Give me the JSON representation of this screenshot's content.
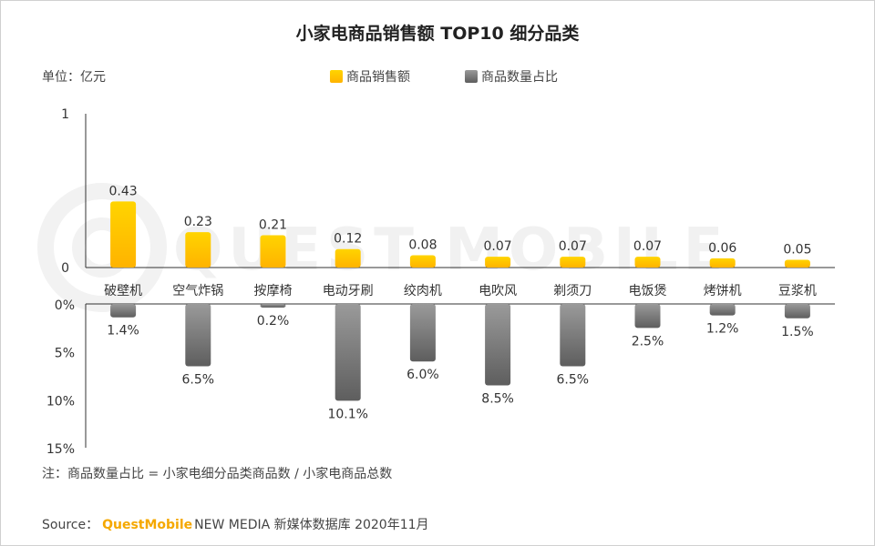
{
  "title": "小家电商品销售额 TOP10 细分品类",
  "unit_label": "单位：亿元",
  "legend": {
    "sales": "商品销售额",
    "share": "商品数量占比"
  },
  "colors": {
    "sales_top": "#ffd400",
    "sales_bottom": "#ffb300",
    "share_top": "#9a9a9a",
    "share_bottom": "#5e5e5e",
    "brand": "#f5a800"
  },
  "watermark": "QUEST MOBILE",
  "note": "注：商品数量占比 = 小家电细分品类商品数 / 小家电商品总数",
  "source": {
    "prefix": "Source：",
    "brand": "QuestMobile",
    "rest": "NEW MEDIA 新媒体数据库 2020年11月"
  },
  "chart_data": {
    "type": "bar",
    "title": "小家电商品销售额 TOP10 细分品类",
    "categories": [
      "破壁机",
      "空气炸锅",
      "按摩椅",
      "电动牙刷",
      "绞肉机",
      "电吹风",
      "剃须刀",
      "电饭煲",
      "烤饼机",
      "豆浆机"
    ],
    "series": [
      {
        "name": "商品销售额",
        "unit": "亿元",
        "values": [
          0.43,
          0.23,
          0.21,
          0.12,
          0.08,
          0.07,
          0.07,
          0.07,
          0.06,
          0.05
        ],
        "labels": [
          "0.43",
          "0.23",
          "0.21",
          "0.12",
          "0.08",
          "0.07",
          "0.07",
          "0.07",
          "0.06",
          "0.05"
        ],
        "ylim": [
          0,
          1
        ],
        "ticks": [
          "1",
          "0"
        ],
        "direction": "up"
      },
      {
        "name": "商品数量占比",
        "unit": "%",
        "values": [
          1.4,
          6.5,
          0.2,
          10.1,
          6.0,
          8.5,
          6.5,
          2.5,
          1.2,
          1.5
        ],
        "labels": [
          "1.4%",
          "6.5%",
          "0.2%",
          "10.1%",
          "6.0%",
          "8.5%",
          "6.5%",
          "2.5%",
          "1.2%",
          "1.5%"
        ],
        "ylim": [
          0,
          15
        ],
        "ticks": [
          "0%",
          "5%",
          "10%",
          "15%"
        ],
        "direction": "down"
      }
    ]
  }
}
